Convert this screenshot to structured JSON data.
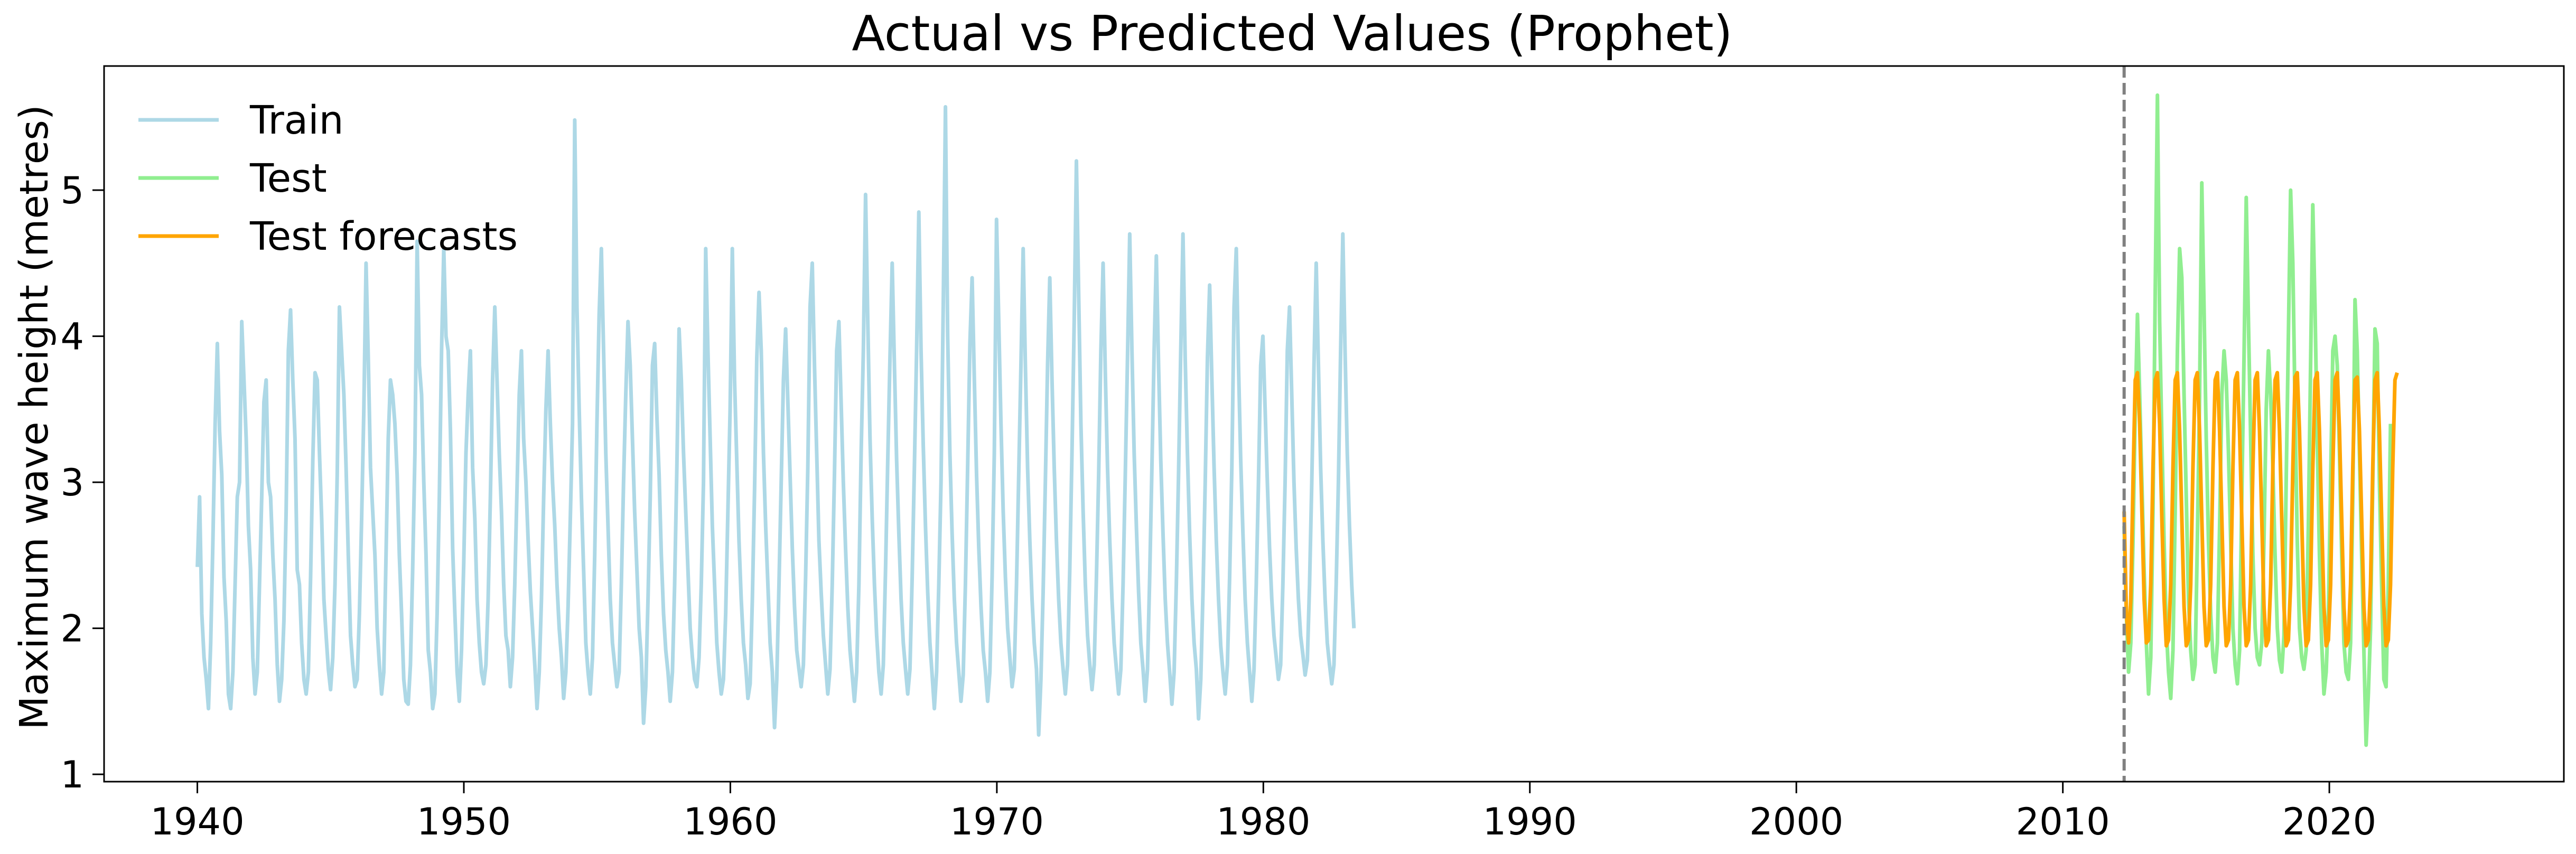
{
  "chart_data": {
    "type": "line",
    "title": "Actual vs Predicted Values (Prophet)",
    "xlabel": "",
    "ylabel": "Maximum wave height (metres)",
    "xlim": [
      1936.5,
      2028.8
    ],
    "ylim": [
      0.95,
      5.85
    ],
    "xticks": [
      1940,
      1950,
      1960,
      1970,
      1980,
      1990,
      2000,
      2010,
      2020
    ],
    "yticks": [
      1,
      2,
      3,
      4,
      5
    ],
    "split_line_x": 2012.3,
    "legend_position": "upper-left",
    "grid": false,
    "series": [
      {
        "name": "Train",
        "color": "#add8e6",
        "x_start": 1940.0,
        "x_step": 0.0833,
        "values": [
          2.42,
          2.9,
          2.1,
          1.8,
          1.65,
          1.45,
          1.9,
          2.6,
          3.4,
          3.95,
          3.35,
          3.05,
          2.35,
          2.05,
          1.55,
          1.45,
          1.7,
          2.3,
          2.9,
          3.0,
          4.1,
          3.7,
          3.3,
          2.7,
          2.4,
          1.8,
          1.55,
          1.7,
          2.3,
          2.9,
          3.55,
          3.7,
          3.0,
          2.9,
          2.5,
          2.2,
          1.75,
          1.5,
          1.65,
          2.05,
          2.8,
          3.9,
          4.18,
          3.7,
          3.3,
          2.4,
          2.3,
          1.9,
          1.65,
          1.55,
          1.7,
          2.35,
          3.15,
          3.75,
          3.7,
          3.2,
          2.75,
          2.2,
          1.95,
          1.72,
          1.58,
          1.8,
          2.3,
          3.05,
          4.2,
          3.9,
          3.6,
          3.1,
          2.5,
          1.95,
          1.75,
          1.6,
          1.65,
          2.1,
          2.75,
          3.5,
          4.5,
          3.85,
          3.1,
          2.8,
          2.5,
          2.0,
          1.75,
          1.55,
          1.7,
          2.5,
          3.3,
          3.7,
          3.6,
          3.4,
          3.05,
          2.5,
          2.1,
          1.65,
          1.5,
          1.48,
          1.75,
          2.4,
          3.2,
          4.65,
          3.8,
          3.6,
          3.0,
          2.5,
          1.85,
          1.7,
          1.45,
          1.55,
          2.1,
          2.9,
          3.9,
          4.6,
          4.0,
          3.9,
          3.35,
          2.55,
          2.1,
          1.7,
          1.5,
          1.85,
          2.45,
          3.2,
          3.6,
          3.9,
          3.1,
          2.75,
          2.2,
          1.9,
          1.7,
          1.62,
          1.75,
          2.2,
          2.9,
          3.7,
          4.2,
          3.7,
          3.2,
          2.8,
          2.3,
          1.95,
          1.85,
          1.6,
          1.8,
          2.3,
          2.95,
          3.6,
          3.9,
          3.3,
          3.0,
          2.6,
          2.25,
          2.0,
          1.75,
          1.45,
          1.7,
          2.2,
          2.9,
          3.5,
          3.9,
          3.4,
          3.0,
          2.7,
          2.3,
          2.0,
          1.8,
          1.52,
          1.7,
          2.15,
          2.75,
          3.4,
          5.48,
          4.2,
          3.5,
          2.9,
          2.4,
          1.9,
          1.7,
          1.55,
          1.8,
          2.5,
          3.4,
          4.15,
          4.6,
          3.9,
          3.2,
          2.7,
          2.2,
          1.9,
          1.75,
          1.6,
          1.7,
          2.3,
          3.0,
          3.6,
          4.1,
          3.8,
          3.3,
          2.8,
          2.4,
          2.0,
          1.8,
          1.35,
          1.6,
          2.2,
          2.9,
          3.8,
          3.95,
          3.45,
          3.05,
          2.5,
          2.1,
          1.85,
          1.7,
          1.5,
          1.7,
          2.3,
          3.1,
          4.05,
          3.7,
          3.2,
          2.8,
          2.4,
          2.0,
          1.8,
          1.65,
          1.6,
          1.8,
          2.3,
          3.0,
          4.6,
          3.9,
          3.3,
          2.7,
          2.3,
          1.9,
          1.7,
          1.55,
          1.65,
          2.1,
          2.8,
          3.5,
          4.6,
          3.7,
          3.15,
          2.6,
          2.2,
          1.9,
          1.75,
          1.52,
          1.62,
          2.2,
          2.95,
          3.85,
          4.3,
          3.9,
          3.2,
          2.7,
          2.3,
          1.9,
          1.7,
          1.32,
          1.65,
          2.3,
          3.0,
          3.7,
          4.05,
          3.55,
          3.05,
          2.55,
          2.15,
          1.85,
          1.72,
          1.6,
          1.75,
          2.35,
          3.1,
          4.2,
          4.5,
          3.8,
          3.2,
          2.6,
          2.25,
          1.95,
          1.75,
          1.55,
          1.72,
          2.3,
          3.05,
          3.9,
          4.1,
          3.55,
          3.0,
          2.55,
          2.15,
          1.85,
          1.68,
          1.5,
          1.7,
          2.3,
          3.2,
          3.9,
          4.97,
          4.1,
          3.3,
          2.75,
          2.3,
          1.95,
          1.7,
          1.55,
          1.75,
          2.4,
          3.15,
          3.85,
          4.5,
          3.8,
          3.15,
          2.65,
          2.2,
          1.9,
          1.72,
          1.55,
          1.72,
          2.35,
          3.1,
          3.9,
          4.85,
          3.9,
          3.25,
          2.7,
          2.25,
          1.9,
          1.68,
          1.45,
          1.7,
          2.3,
          3.0,
          4.2,
          5.57,
          4.0,
          3.2,
          2.65,
          2.2,
          1.9,
          1.7,
          1.5,
          1.68,
          2.3,
          3.1,
          3.95,
          4.4,
          3.7,
          3.05,
          2.55,
          2.15,
          1.85,
          1.7,
          1.5,
          1.7,
          2.35,
          3.2,
          4.8,
          4.1,
          3.4,
          2.8,
          2.35,
          2.0,
          1.8,
          1.6,
          1.72,
          2.3,
          3.05,
          3.8,
          4.6,
          3.8,
          3.1,
          2.6,
          2.2,
          1.9,
          1.72,
          1.27,
          1.65,
          2.25,
          3.0,
          3.8,
          4.4,
          3.7,
          3.1,
          2.6,
          2.2,
          1.9,
          1.72,
          1.55,
          1.75,
          2.4,
          3.2,
          4.1,
          5.2,
          4.3,
          3.4,
          2.8,
          2.3,
          1.95,
          1.75,
          1.58,
          1.75,
          2.35,
          3.05,
          3.9,
          4.5,
          3.75,
          3.1,
          2.6,
          2.2,
          1.9,
          1.72,
          1.55,
          1.72,
          2.3,
          3.05,
          3.85,
          4.7,
          3.9,
          3.2,
          2.7,
          2.25,
          1.9,
          1.72,
          1.5,
          1.72,
          2.35,
          3.1,
          3.9,
          4.55,
          3.8,
          3.15,
          2.65,
          2.2,
          1.9,
          1.7,
          1.48,
          1.7,
          2.3,
          3.05,
          3.9,
          4.7,
          3.85,
          3.2,
          2.65,
          2.2,
          1.9,
          1.72,
          1.38,
          1.65,
          2.25,
          3.0,
          3.85,
          4.35,
          3.7,
          3.1,
          2.6,
          2.2,
          1.88,
          1.7,
          1.55,
          1.75,
          2.35,
          3.1,
          4.2,
          4.6,
          3.8,
          3.15,
          2.65,
          2.2,
          1.9,
          1.7,
          1.5,
          1.72,
          2.3,
          3.0,
          3.8,
          4.0,
          3.5,
          3.0,
          2.55,
          2.2,
          1.95,
          1.8,
          1.65,
          1.75,
          2.3,
          3.0,
          3.9,
          4.2,
          3.6,
          3.0,
          2.55,
          2.2,
          1.95,
          1.82,
          1.68,
          1.78,
          2.3,
          3.0,
          3.8,
          4.5,
          3.8,
          3.1,
          2.6,
          2.2,
          1.9,
          1.75,
          1.62,
          1.75,
          2.3,
          3.0,
          3.9,
          4.7,
          3.9,
          3.2,
          2.7,
          2.3,
          2.0
        ],
        "note_values_resampled": "approximate, read from the plotted curve"
      },
      {
        "name": "Test",
        "color": "#90ee90",
        "x_start": 2012.3,
        "x_step": 0.0833,
        "values": [
          2.7,
          2.1,
          1.7,
          1.9,
          2.6,
          3.5,
          4.15,
          3.6,
          3.0,
          2.4,
          1.9,
          1.55,
          1.8,
          2.8,
          4.3,
          5.65,
          4.1,
          3.3,
          2.6,
          2.0,
          1.7,
          1.52,
          1.85,
          2.8,
          3.9,
          4.6,
          4.4,
          3.6,
          2.9,
          2.2,
          1.85,
          1.65,
          1.75,
          2.6,
          3.6,
          5.05,
          4.2,
          3.3,
          2.6,
          2.1,
          1.8,
          1.7,
          1.9,
          2.7,
          3.6,
          3.9,
          3.7,
          3.2,
          2.6,
          2.0,
          1.75,
          1.62,
          1.85,
          2.9,
          3.85,
          4.95,
          4.1,
          3.3,
          2.5,
          2.0,
          1.8,
          1.75,
          1.9,
          2.6,
          3.5,
          3.9,
          3.6,
          3.1,
          2.5,
          2.0,
          1.78,
          1.7,
          1.95,
          3.0,
          4.0,
          5.0,
          4.5,
          3.5,
          2.6,
          2.0,
          1.8,
          1.72,
          1.85,
          2.7,
          3.8,
          4.9,
          4.2,
          3.3,
          2.5,
          1.9,
          1.55,
          1.7,
          2.1,
          3.0,
          3.9,
          4.0,
          3.8,
          3.2,
          2.5,
          1.9,
          1.7,
          1.65,
          1.9,
          2.9,
          4.25,
          3.9,
          3.2,
          2.5,
          1.85,
          1.2,
          1.55,
          2.0,
          3.0,
          4.05,
          3.95,
          3.0,
          2.3,
          1.65,
          1.6,
          2.3,
          3.4
        ]
      },
      {
        "name": "Test forecasts",
        "color": "#ffa500",
        "x_start": 2012.3,
        "x_step": 0.0833,
        "values": [
          2.8,
          2.1,
          1.9,
          2.2,
          3.0,
          3.7,
          3.75,
          3.4,
          2.8,
          2.2,
          1.9,
          1.92,
          2.3,
          3.1,
          3.7,
          3.75,
          3.4,
          2.75,
          2.2,
          1.88,
          1.92,
          2.3,
          3.1,
          3.7,
          3.75,
          3.35,
          2.75,
          2.15,
          1.88,
          1.92,
          2.3,
          3.1,
          3.7,
          3.75,
          3.35,
          2.75,
          2.15,
          1.88,
          1.92,
          2.3,
          3.1,
          3.7,
          3.75,
          3.35,
          2.75,
          2.15,
          1.88,
          1.92,
          2.3,
          3.1,
          3.7,
          3.75,
          3.35,
          2.75,
          2.15,
          1.88,
          1.92,
          2.3,
          3.1,
          3.7,
          3.75,
          3.35,
          2.75,
          2.15,
          1.88,
          1.92,
          2.3,
          3.1,
          3.7,
          3.75,
          3.35,
          2.75,
          2.15,
          1.88,
          1.92,
          2.3,
          3.1,
          3.72,
          3.75,
          3.35,
          2.75,
          2.15,
          1.88,
          1.92,
          2.3,
          3.1,
          3.7,
          3.75,
          3.35,
          2.75,
          2.15,
          1.88,
          1.92,
          2.3,
          3.1,
          3.7,
          3.75,
          3.35,
          2.75,
          2.15,
          1.88,
          1.92,
          2.3,
          3.1,
          3.7,
          3.72,
          3.35,
          2.75,
          2.15,
          1.88,
          1.92,
          2.3,
          3.1,
          3.7,
          3.75,
          3.35,
          2.75,
          2.15,
          1.88,
          1.92,
          2.3,
          3.1,
          3.7,
          3.75
        ]
      }
    ]
  }
}
